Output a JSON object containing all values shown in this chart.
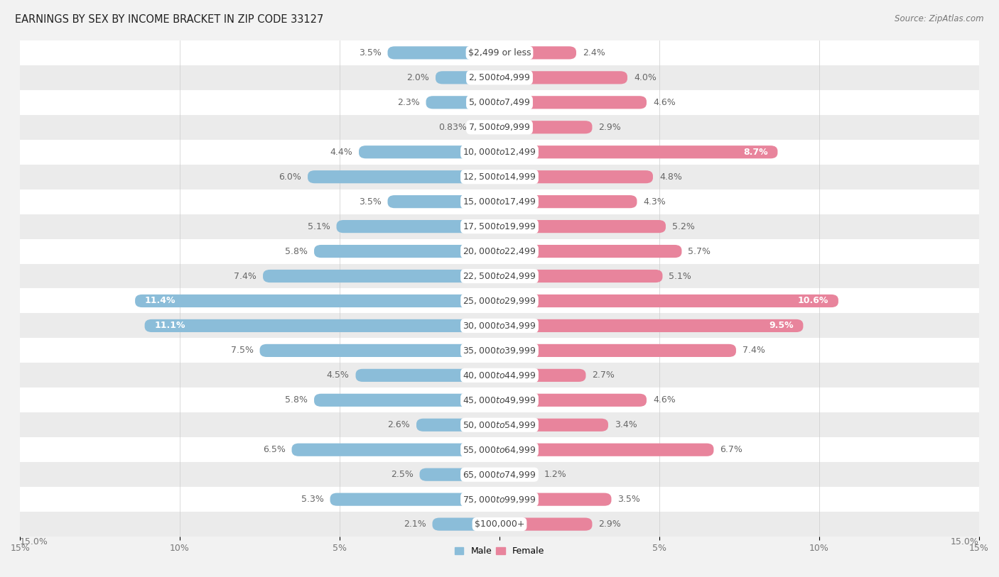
{
  "title": "EARNINGS BY SEX BY INCOME BRACKET IN ZIP CODE 33127",
  "source": "Source: ZipAtlas.com",
  "categories": [
    "$2,499 or less",
    "$2,500 to $4,999",
    "$5,000 to $7,499",
    "$7,500 to $9,999",
    "$10,000 to $12,499",
    "$12,500 to $14,999",
    "$15,000 to $17,499",
    "$17,500 to $19,999",
    "$20,000 to $22,499",
    "$22,500 to $24,999",
    "$25,000 to $29,999",
    "$30,000 to $34,999",
    "$35,000 to $39,999",
    "$40,000 to $44,999",
    "$45,000 to $49,999",
    "$50,000 to $54,999",
    "$55,000 to $64,999",
    "$65,000 to $74,999",
    "$75,000 to $99,999",
    "$100,000+"
  ],
  "male_values": [
    3.5,
    2.0,
    2.3,
    0.83,
    4.4,
    6.0,
    3.5,
    5.1,
    5.8,
    7.4,
    11.4,
    11.1,
    7.5,
    4.5,
    5.8,
    2.6,
    6.5,
    2.5,
    5.3,
    2.1
  ],
  "female_values": [
    2.4,
    4.0,
    4.6,
    2.9,
    8.7,
    4.8,
    4.3,
    5.2,
    5.7,
    5.1,
    10.6,
    9.5,
    7.4,
    2.7,
    4.6,
    3.4,
    6.7,
    1.2,
    3.5,
    2.9
  ],
  "male_color": "#8bbdd9",
  "female_color": "#e8849c",
  "male_label_color_inside": "#ffffff",
  "male_label_color_outside": "#666666",
  "female_label_color_inside": "#ffffff",
  "female_label_color_outside": "#666666",
  "row_colors": [
    "#ffffff",
    "#ebebeb"
  ],
  "center_label_bg": "#ffffff",
  "center_label_color": "#444444",
  "xlim": 15.0,
  "bar_height": 0.52,
  "label_fontsize": 9.0,
  "title_fontsize": 10.5,
  "source_fontsize": 8.5,
  "axis_tick_fontsize": 9.0,
  "inside_label_threshold": 8.0
}
